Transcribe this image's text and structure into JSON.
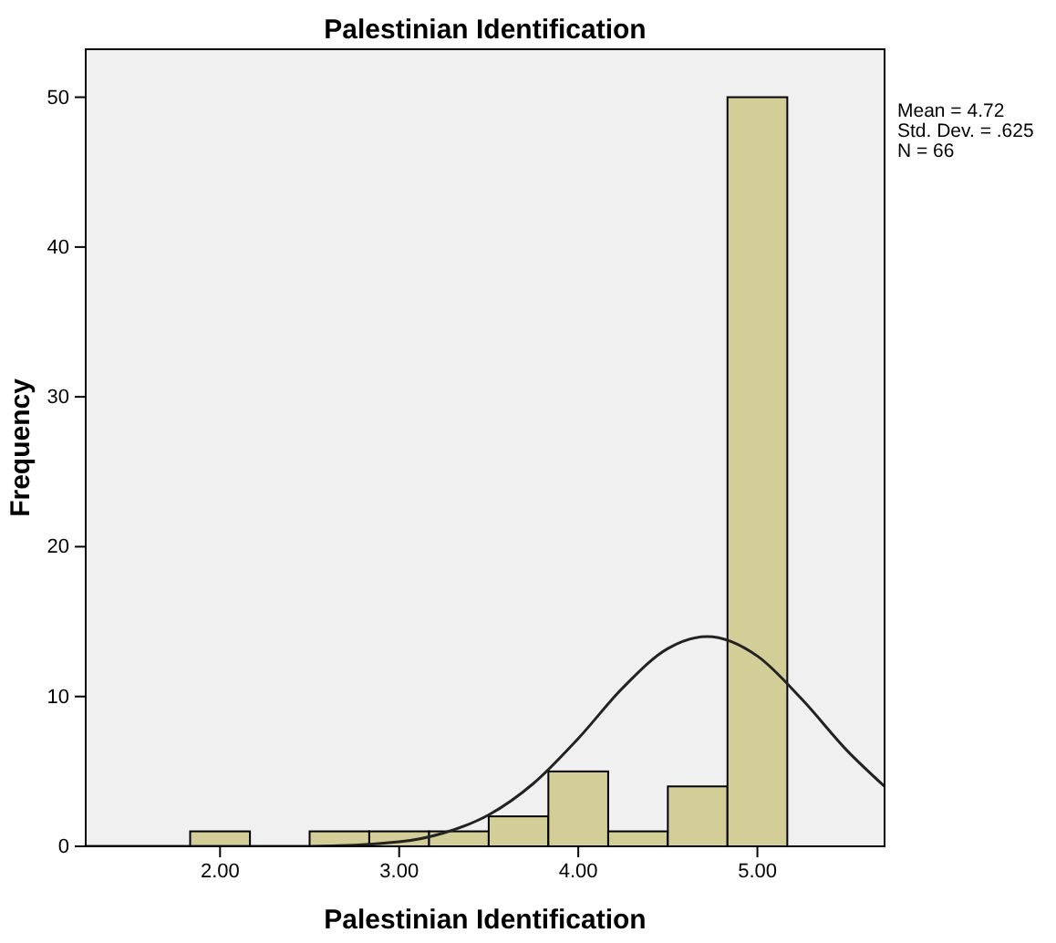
{
  "chart_data": {
    "type": "histogram",
    "title": "Palestinian Identification",
    "xlabel": "Palestinian Identification",
    "ylabel": "Frequency",
    "bins": [
      1.833,
      2.167,
      2.5,
      2.833,
      3.167,
      3.5,
      3.833,
      4.167,
      4.5,
      4.833,
      5.167
    ],
    "values": [
      1,
      0,
      1,
      1,
      1,
      2,
      5,
      1,
      4,
      50
    ],
    "color": "#d3ce97",
    "series": [
      {
        "type": "line",
        "color": "#222222",
        "x": [
          1.25,
          2.0,
          2.5,
          3.0,
          3.25,
          3.5,
          3.75,
          4.0,
          4.25,
          4.5,
          4.72,
          5.0,
          5.25,
          5.5,
          5.71
        ],
        "values": [
          0,
          0,
          0,
          0.3,
          0.9,
          2.1,
          4.2,
          7.2,
          10.6,
          13.2,
          14,
          12.7,
          9.8,
          6.4,
          4
        ]
      }
    ],
    "xlim": [
      1.25,
      5.71
    ],
    "ylim": [
      0,
      53.2
    ],
    "xticks": [
      {
        "value": 2,
        "label": "2.00"
      },
      {
        "value": 3,
        "label": "3.00"
      },
      {
        "value": 4,
        "label": "4.00"
      },
      {
        "value": 5,
        "label": "5.00"
      }
    ],
    "yticks": [
      0,
      10,
      20,
      30,
      40,
      50
    ],
    "annotations": [
      "Mean = 4.72",
      "Std. Dev. = .625",
      "N = 66"
    ],
    "grid": false
  }
}
